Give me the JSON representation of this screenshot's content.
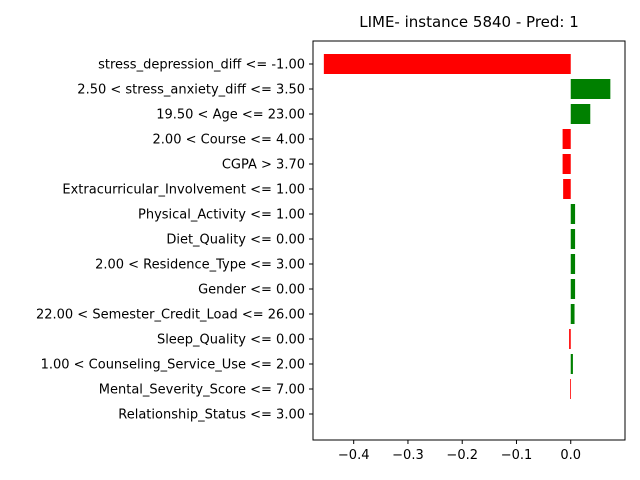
{
  "chart_data": {
    "type": "bar",
    "orientation": "horizontal",
    "title": "LIME- instance 5840 - Pred: 1",
    "xlabel": "",
    "ylabel": "",
    "xlim": [
      -0.475,
      0.1
    ],
    "xticks": [
      -0.4,
      -0.3,
      -0.2,
      -0.1,
      0.0
    ],
    "xtick_labels": [
      "−0.4",
      "−0.3",
      "−0.2",
      "−0.1",
      "0.0"
    ],
    "grid": false,
    "categories": [
      "stress_depression_diff <= -1.00",
      "2.50 < stress_anxiety_diff <= 3.50",
      "19.50 < Age <= 23.00",
      "2.00 < Course <= 4.00",
      "CGPA > 3.70",
      "Extracurricular_Involvement <= 1.00",
      "Physical_Activity <= 1.00",
      "Diet_Quality <= 0.00",
      "2.00 < Residence_Type <= 3.00",
      "Gender <= 0.00",
      "22.00 < Semester_Credit_Load <= 26.00",
      "Sleep_Quality <= 0.00",
      "1.00 < Counseling_Service_Use <= 2.00",
      "Mental_Severity_Score <= 7.00",
      "Relationship_Status <= 3.00"
    ],
    "values": [
      -0.455,
      0.073,
      0.036,
      -0.015,
      -0.015,
      -0.014,
      0.008,
      0.008,
      0.008,
      0.008,
      0.007,
      -0.003,
      0.004,
      -0.001,
      0.0
    ],
    "colors": {
      "positive": "#008000",
      "negative": "#ff0000"
    }
  }
}
